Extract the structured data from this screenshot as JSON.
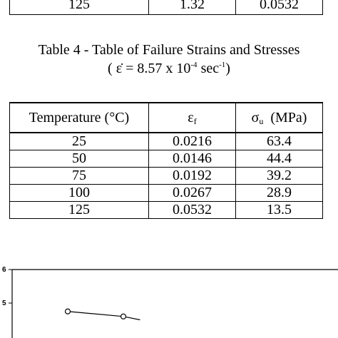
{
  "prev_table": {
    "row": [
      "125",
      "1.32",
      "0.0532"
    ]
  },
  "table4": {
    "caption": "Table 4 - Table of Failure Strains and Stresses",
    "rate": {
      "open": "( ",
      "symbol": "ε̇",
      "eq": " = 8.57 x 10",
      "exp": "-4",
      "unit": " sec",
      "unit_exp": "-1",
      "close": ")"
    },
    "headers": {
      "temperature": "Temperature (°C)",
      "strain_symbol": "ε",
      "strain_sub": "f",
      "stress_symbol": "σ",
      "stress_sub": "u",
      "stress_unit": "  (MPa)"
    },
    "rows": [
      {
        "temperature": "25",
        "strain": "0.0216",
        "stress": "63.4"
      },
      {
        "temperature": "50",
        "strain": "0.0146",
        "stress": "44.4"
      },
      {
        "temperature": "75",
        "strain": "0.0192",
        "stress": "39.2"
      },
      {
        "temperature": "100",
        "strain": "0.0267",
        "stress": "28.9"
      },
      {
        "temperature": "125",
        "strain": "0.0532",
        "stress": "13.5"
      }
    ]
  },
  "figure": {
    "y_ticks": [
      "6",
      "5"
    ],
    "marker": "open-circle",
    "points": [
      {
        "x": 1,
        "y": 4.75
      },
      {
        "x": 2,
        "y": 4.6
      },
      {
        "x": 2.3,
        "y": 4.5
      }
    ]
  }
}
